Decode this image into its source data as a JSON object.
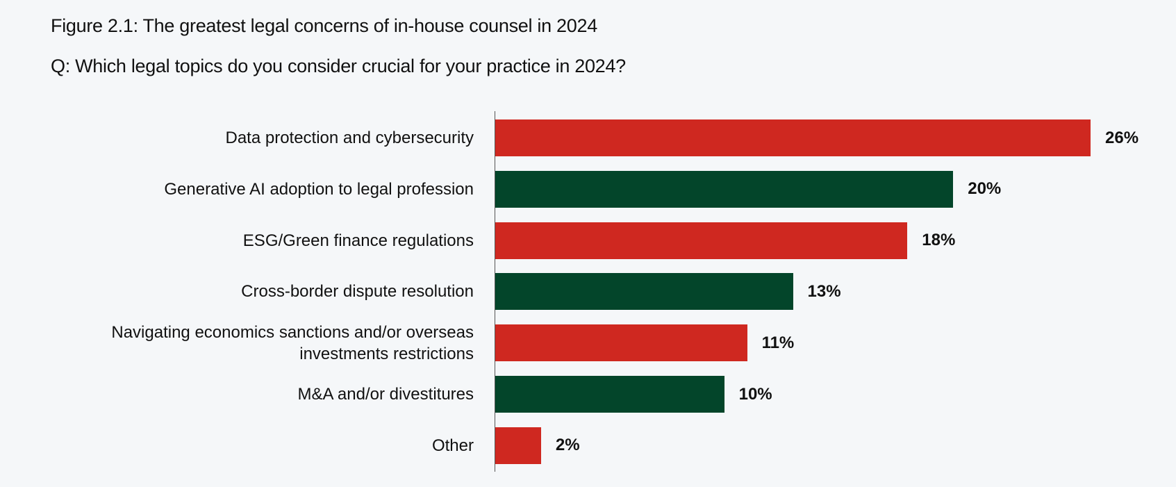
{
  "title": "Figure 2.1: The greatest legal concerns of in-house counsel in 2024",
  "subtitle": "Q: Which legal topics do you consider crucial for your practice in 2024?",
  "colors": {
    "red": "#cf2820",
    "green": "#03452a"
  },
  "chart_data": {
    "type": "bar",
    "orientation": "horizontal",
    "title": "Figure 2.1: The greatest legal concerns of in-house counsel in 2024",
    "subtitle": "Q: Which legal topics do you consider crucial for your practice in 2024?",
    "categories": [
      "Data protection and cybersecurity",
      "Generative AI adoption to legal profession",
      "ESG/Green finance regulations",
      "Cross-border dispute resolution",
      "Navigating economics sanctions and/or overseas investments restrictions",
      "M&A and/or divestitures",
      "Other"
    ],
    "values": [
      26,
      20,
      18,
      13,
      11,
      10,
      2
    ],
    "value_labels": [
      "26%",
      "20%",
      "18%",
      "13%",
      "11%",
      "10%",
      "2%"
    ],
    "bar_colors": [
      "#cf2820",
      "#03452a",
      "#cf2820",
      "#03452a",
      "#cf2820",
      "#03452a",
      "#cf2820"
    ],
    "xlabel": "",
    "ylabel": "",
    "grid": false,
    "legend": null
  },
  "rows": [
    {
      "label": "Data protection and cybersecurity",
      "value": "26%"
    },
    {
      "label": "Generative AI adoption to legal profession",
      "value": "20%"
    },
    {
      "label": "ESG/Green finance regulations",
      "value": "18%"
    },
    {
      "label": "Cross-border dispute resolution",
      "value": "13%"
    },
    {
      "label": "Navigating economics sanctions and/or overseas investments restrictions",
      "value": "11%"
    },
    {
      "label": "M&A and/or divestitures",
      "value": "10%"
    },
    {
      "label": "Other",
      "value": "2%"
    }
  ]
}
